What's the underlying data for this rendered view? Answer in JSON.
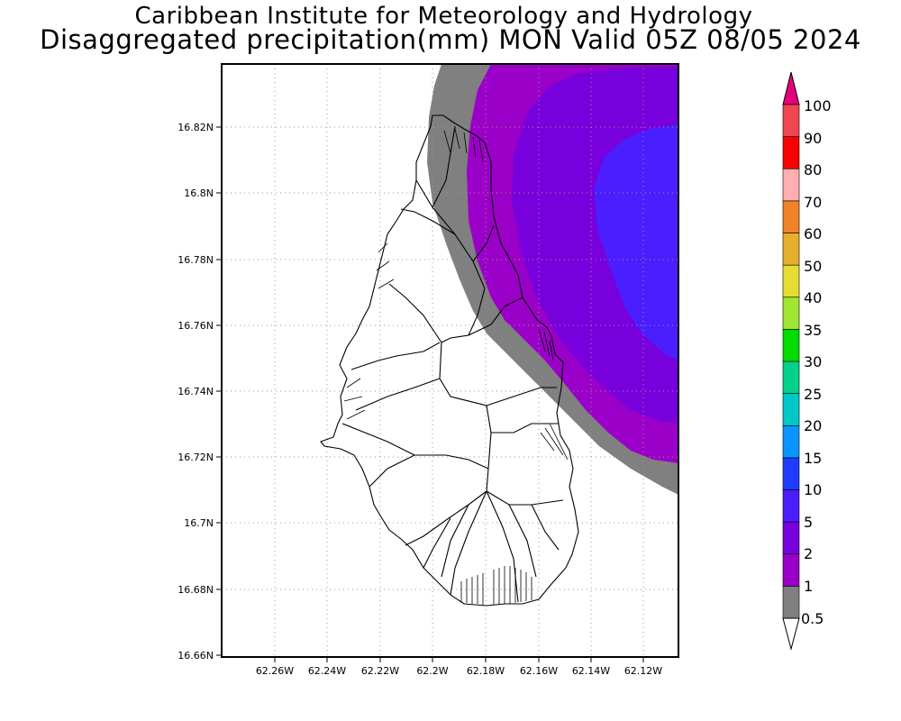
{
  "header": {
    "title_line1": "Caribbean Institute for Meteorology and Hydrology",
    "title_line2": "Disaggregated precipitation(mm) MON Valid 05Z 08/05 2024"
  },
  "axes": {
    "y_ticks": [
      "16.82N",
      "16.8N",
      "16.78N",
      "16.76N",
      "16.74N",
      "16.72N",
      "16.7N",
      "16.68N",
      "16.66N"
    ],
    "x_ticks": [
      "62.26W",
      "62.24W",
      "62.22W",
      "62.2W",
      "62.18W",
      "62.16W",
      "62.14W",
      "62.12W"
    ],
    "lat_range": [
      16.66,
      16.84
    ],
    "lon_range": [
      -62.28,
      -62.105
    ],
    "grid": "dotted"
  },
  "colorbar": {
    "levels": [
      "0.5",
      "1",
      "2",
      "5",
      "10",
      "15",
      "20",
      "25",
      "30",
      "35",
      "40",
      "50",
      "60",
      "70",
      "80",
      "90",
      "100"
    ],
    "colors": [
      "#808080",
      "#9b00c8",
      "#7800dc",
      "#4b1eff",
      "#1e3cff",
      "#0a96ff",
      "#00c8c8",
      "#00d28c",
      "#00dc00",
      "#a0e632",
      "#e6dc32",
      "#e6af2d",
      "#f08228",
      "#ffafaf",
      "#fa0000",
      "#f04650",
      "#e6007d"
    ],
    "low_end_color": "#ffffff",
    "high_end_color": "#e6007d"
  },
  "field": {
    "description_colors": {
      "band_0_5_1": "#808080",
      "band_1_2": "#9b00c8",
      "band_2_5": "#7800dc",
      "band_5_10": "#4b1eff"
    }
  }
}
